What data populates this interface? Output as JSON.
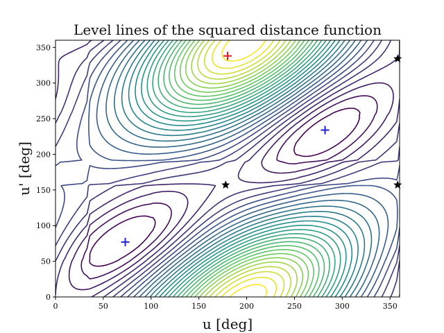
{
  "chart_data": {
    "type": "contour",
    "title": "Level lines of the squared distance function",
    "xlabel": "u [deg]",
    "ylabel": "u' [deg]",
    "xlim": [
      0,
      360
    ],
    "ylim": [
      0,
      360
    ],
    "xticks": [
      0,
      50,
      100,
      150,
      200,
      250,
      300,
      350
    ],
    "yticks": [
      0,
      50,
      100,
      150,
      200,
      250,
      300,
      350
    ],
    "colormap": [
      "#440154",
      "#3b528b",
      "#21918c",
      "#5ec962",
      "#fde725"
    ],
    "level_count": 28,
    "maxima": [
      {
        "u": 180,
        "up": 338,
        "color": "#e41a1c",
        "marker": "+"
      },
      {
        "u": 215,
        "up": 10,
        "marker": "none"
      }
    ],
    "minima": [
      {
        "u": 73,
        "up": 77,
        "color": "#1f1fe0",
        "marker": "+"
      },
      {
        "u": 282,
        "up": 234,
        "color": "#1f1fe0",
        "marker": "+"
      }
    ],
    "saddles": [
      {
        "u": 178,
        "up": 157,
        "color": "#000000",
        "marker": "*"
      },
      {
        "u": 358,
        "up": 157,
        "color": "#000000",
        "marker": "*"
      },
      {
        "u": 358,
        "up": 334,
        "color": "#000000",
        "marker": "*"
      }
    ]
  }
}
